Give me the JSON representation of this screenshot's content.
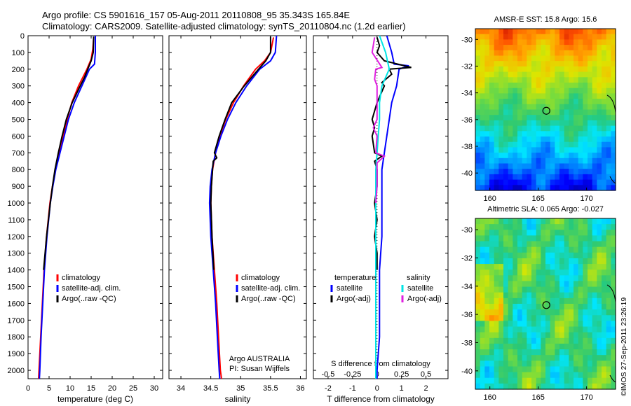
{
  "header": {
    "line1": "Argo profile: CS 5901616_157 05-Aug-2011 20110808_95 35.343S 165.84E",
    "line2": "Climatology: CARS2009. Satellite-adjusted climatology: synTS_20110804.nc (1.2d earlier)"
  },
  "side_caption": "©IMOS 27-Sep-2011 23:26:19",
  "colors": {
    "climatology": "#ff0000",
    "satellite": "#0000ff",
    "argo": "#000000",
    "salinity_sat": "#00e5e5",
    "salinity_argo": "#e020e0"
  },
  "chart_data": [
    {
      "type": "line",
      "name_id": "temperature-profile",
      "xlabel": "temperature (deg C)",
      "ylabel": "",
      "xlim": [
        0,
        32
      ],
      "ylim": [
        0,
        2050
      ],
      "y_reversed": true,
      "xticks": [
        "0",
        "5",
        "10",
        "15",
        "20",
        "25",
        "30"
      ],
      "yticks": [
        "0",
        "100",
        "200",
        "300",
        "400",
        "500",
        "600",
        "700",
        "800",
        "900",
        "1000",
        "1100",
        "1200",
        "1300",
        "1400",
        "1500",
        "1600",
        "1700",
        "1800",
        "1900",
        "2000"
      ],
      "legend": [
        "climatology",
        "satellite-adj. clim.",
        "Argo(..raw -QC)"
      ],
      "series": [
        {
          "name": "climatology",
          "color": "#ff0000",
          "depth": [
            10,
            80,
            140,
            200,
            300,
            400,
            500,
            600,
            700,
            800,
            900,
            1000,
            1200,
            1400,
            1600,
            1800,
            2000,
            2050
          ],
          "values": [
            15.6,
            15.4,
            15.0,
            14.0,
            12.0,
            10.4,
            9.3,
            8.4,
            7.4,
            6.5,
            5.8,
            5.2,
            4.4,
            3.8,
            3.4,
            3.0,
            2.6,
            2.5
          ]
        },
        {
          "name": "satellite-adj. clim.",
          "color": "#0000ff",
          "depth": [
            0,
            100,
            170,
            180,
            200,
            300,
            400,
            500,
            600,
            700,
            800,
            900,
            1000,
            1200,
            1400,
            1600,
            1800,
            2000,
            2050
          ],
          "values": [
            16.0,
            16.0,
            15.8,
            15.4,
            14.6,
            12.8,
            11.0,
            9.6,
            8.6,
            7.6,
            6.6,
            5.9,
            5.3,
            4.5,
            3.9,
            3.5,
            3.1,
            2.8,
            2.7
          ]
        },
        {
          "name": "Argo(..raw -QC)",
          "color": "#000000",
          "depth": [
            5,
            100,
            150,
            200,
            250,
            300,
            400,
            500,
            600,
            700,
            800,
            900,
            1000,
            1200,
            1400
          ],
          "values": [
            15.6,
            15.5,
            15.0,
            14.2,
            13.4,
            12.4,
            10.5,
            9.1,
            8.1,
            7.2,
            6.4,
            5.8,
            5.3,
            4.4,
            3.7
          ]
        }
      ]
    },
    {
      "type": "line",
      "name_id": "salinity-profile",
      "xlabel": "salinity",
      "ylabel": "",
      "xlim": [
        33.8,
        36.1
      ],
      "ylim": [
        0,
        2050
      ],
      "y_reversed": true,
      "xticks": [
        "34",
        "34.5",
        "35",
        "35.5",
        "36"
      ],
      "legend": [
        "climatology",
        "satellite-adj. clim.",
        "Argo(..raw -QC)"
      ],
      "annotation": [
        "Argo AUSTRALIA",
        "PI: Susan Wijffels"
      ],
      "series": [
        {
          "name": "climatology",
          "color": "#ff0000",
          "depth": [
            10,
            100,
            150,
            200,
            300,
            400,
            500,
            600,
            700,
            800,
            900,
            1000,
            1200,
            1400,
            1600,
            1800,
            2000,
            2050
          ],
          "values": [
            35.55,
            35.5,
            35.4,
            35.25,
            35.05,
            34.88,
            34.75,
            34.65,
            34.58,
            34.53,
            34.51,
            34.5,
            34.52,
            34.56,
            34.6,
            34.63,
            34.66,
            34.68
          ]
        },
        {
          "name": "satellite-adj. clim.",
          "color": "#0000ff",
          "depth": [
            0,
            100,
            150,
            200,
            300,
            400,
            500,
            600,
            700,
            800,
            900,
            1000,
            1200,
            1400,
            1600,
            1800,
            2000,
            2050
          ],
          "values": [
            35.6,
            35.58,
            35.5,
            35.32,
            35.1,
            34.92,
            34.78,
            34.67,
            34.58,
            34.52,
            34.49,
            34.48,
            34.5,
            34.54,
            34.58,
            34.61,
            34.64,
            34.65
          ]
        },
        {
          "name": "Argo(..raw -QC)",
          "color": "#000000",
          "depth": [
            5,
            100,
            150,
            200,
            300,
            400,
            500,
            600,
            700,
            730,
            750,
            800,
            900,
            1000,
            1200,
            1400
          ],
          "values": [
            35.5,
            35.5,
            35.42,
            35.3,
            35.06,
            34.85,
            34.74,
            34.64,
            34.56,
            34.6,
            34.54,
            34.53,
            34.51,
            34.5,
            34.52,
            34.55
          ]
        }
      ]
    },
    {
      "type": "line",
      "name_id": "difference-profile",
      "xlabel": "T difference from climatology",
      "xlabel_top": "S difference from climatology",
      "xlim": [
        -2.6,
        2.9
      ],
      "ylim": [
        0,
        2050
      ],
      "y_reversed": true,
      "xticks": [
        "-2",
        "-1",
        "0",
        "1",
        "2"
      ],
      "xticks_s": [
        "-0.5",
        "-0.25",
        "0",
        "0.25",
        "0.5"
      ],
      "legend_titles": [
        "temperature",
        "salinity"
      ],
      "legend": [
        "satellite",
        "Argo(-adj)",
        "satellite",
        "Argo(-adj)"
      ],
      "series": [
        {
          "name": "temperature satellite",
          "color": "#0000ff",
          "depth": [
            0,
            100,
            170,
            180,
            200,
            300,
            400,
            500,
            600,
            700,
            800,
            900,
            1000,
            1200,
            1400,
            1600,
            1800,
            2000,
            2050
          ],
          "values": [
            0.4,
            0.6,
            0.7,
            1.3,
            0.9,
            0.8,
            0.6,
            0.5,
            0.4,
            0.3,
            0.2,
            0.2,
            0.2,
            0.2,
            0.1,
            0.1,
            0.1,
            0.0,
            0.0
          ]
        },
        {
          "name": "temperature Argo(-adj)",
          "color": "#000000",
          "depth": [
            10,
            60,
            100,
            150,
            190,
            200,
            230,
            280,
            300,
            400,
            500,
            550,
            600,
            700,
            720,
            750,
            800,
            900,
            1000,
            1100,
            1200,
            1300,
            1400
          ],
          "values": [
            0.0,
            0.1,
            0.0,
            0.3,
            1.4,
            0.5,
            0.6,
            0.2,
            0.3,
            0.0,
            -0.2,
            -0.1,
            -0.2,
            -0.1,
            0.2,
            -0.1,
            0.0,
            0.0,
            -0.1,
            0.0,
            -0.1,
            0.0,
            0.0
          ]
        },
        {
          "name": "salinity satellite",
          "color": "#00e5e5",
          "depth": [
            0,
            100,
            200,
            300,
            400,
            500,
            600,
            700,
            800,
            900,
            1000,
            1200,
            1400,
            1600,
            1800,
            2000,
            2050
          ],
          "values": [
            0.1,
            0.35,
            0.5,
            0.2,
            0.1,
            0.1,
            0.05,
            0.0,
            -0.05,
            -0.05,
            -0.05,
            -0.05,
            -0.05,
            -0.05,
            -0.05,
            -0.05,
            -0.05
          ]
        },
        {
          "name": "salinity Argo(-adj)",
          "color": "#e020e0",
          "depth": [
            10,
            100,
            190,
            200,
            260,
            300,
            500,
            550,
            600,
            700,
            720,
            760,
            800,
            900,
            1000
          ],
          "values": [
            -0.1,
            -0.2,
            0.2,
            -0.05,
            -0.1,
            0.0,
            0.0,
            -0.15,
            0.0,
            -0.05,
            0.3,
            0.0,
            0.0,
            0.0,
            -0.05
          ]
        }
      ]
    },
    {
      "type": "heatmap",
      "name_id": "sst-map",
      "title": "AMSR-E SST: 15.8 Argo: 15.6",
      "xlim": [
        158.5,
        173
      ],
      "ylim": [
        -41.3,
        -29.2
      ],
      "xticks": [
        "160",
        "165",
        "170"
      ],
      "yticks": [
        "-30",
        "-32",
        "-34",
        "-36",
        "-38",
        "-40"
      ],
      "marker": [
        165.84,
        -35.34
      ]
    },
    {
      "type": "heatmap",
      "name_id": "sla-map",
      "title": "Altimetric SLA: 0.065 Argo: -0.027",
      "xlim": [
        158.5,
        173
      ],
      "ylim": [
        -41.3,
        -29.2
      ],
      "xticks": [
        "160",
        "165",
        "170"
      ],
      "yticks": [
        "-30",
        "-32",
        "-34",
        "-36",
        "-38",
        "-40"
      ],
      "marker": [
        165.84,
        -35.34
      ]
    }
  ]
}
